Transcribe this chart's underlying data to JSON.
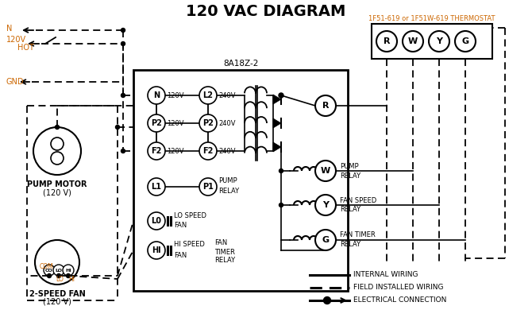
{
  "title": "120 VAC DIAGRAM",
  "bg": "#ffffff",
  "black": "#000000",
  "orange": "#cc6600",
  "thermostat_label": "1F51-619 or 1F51W-619 THERMOSTAT",
  "control_box_label": "8A18Z-2",
  "legend_items": [
    "INTERNAL WIRING",
    "FIELD INSTALLED WIRING",
    "ELECTRICAL CONNECTION"
  ]
}
